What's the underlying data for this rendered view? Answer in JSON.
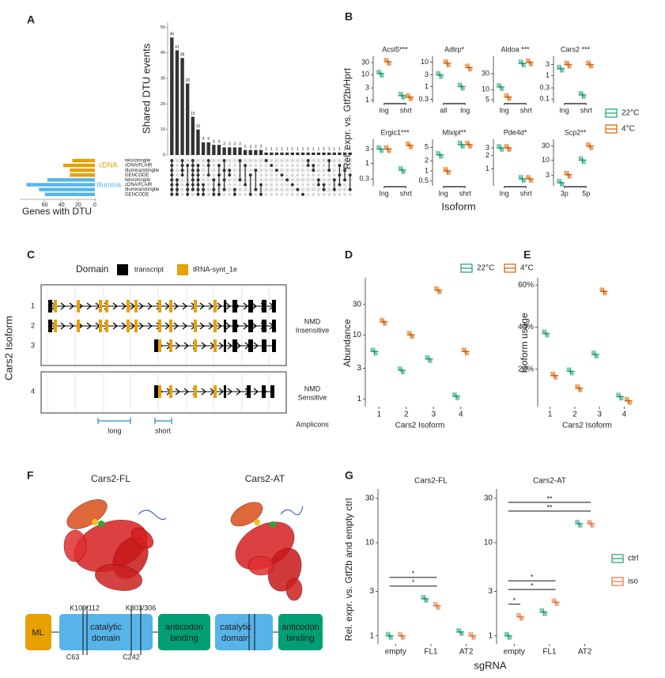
{
  "panel_labels": [
    "A",
    "B",
    "C",
    "D",
    "E",
    "F",
    "G"
  ],
  "chart_data": [
    {
      "type": "upset",
      "ylabel": "Shared DTU events",
      "values": [
        46,
        41,
        38,
        28,
        15,
        10,
        5,
        5,
        4,
        4,
        3,
        3,
        3,
        3,
        2,
        2,
        2,
        2,
        1,
        1,
        1,
        1,
        1,
        1,
        1,
        1,
        1,
        1,
        1,
        1,
        1,
        1,
        1,
        1,
        1
      ],
      "ylim": [
        0,
        52
      ],
      "yticks": [
        0,
        10,
        20,
        30,
        40,
        50
      ],
      "color": "#333333",
      "sets": [
        "telo/stringtie",
        "cDNA/FLAIR",
        "Illumina/stringtie",
        "GENCODE",
        "telo/stringtie",
        "cDNA/FLAIR",
        "Illumina/stringtie",
        "GENCODE"
      ],
      "set_sizes": [
        27,
        38,
        30,
        30,
        57,
        82,
        67,
        60
      ],
      "set_groups": [
        {
          "name": "cDNA",
          "color": "#e69f00"
        },
        {
          "name": "Illumina",
          "color": "#56b4e9"
        }
      ],
      "set_xlim": [
        90,
        0
      ],
      "set_xticks": [
        60,
        40,
        20,
        0
      ],
      "xlabel": "Genes with DTU",
      "membership": [
        [
          0,
          1,
          2,
          3,
          4,
          5,
          6,
          7
        ],
        [
          4,
          5,
          6,
          7
        ],
        [
          0,
          1,
          2,
          3
        ],
        [
          1,
          5,
          6,
          7
        ],
        [
          0,
          1,
          2,
          3,
          4,
          5,
          6
        ],
        [
          1,
          2,
          3,
          4,
          5,
          6,
          7
        ],
        [
          5,
          6,
          7
        ],
        [
          0,
          1,
          3
        ],
        [
          4,
          6,
          7
        ],
        [
          1,
          3,
          5,
          7
        ],
        [
          0,
          2,
          4,
          6
        ],
        [
          2,
          3
        ],
        [
          6,
          7
        ],
        [
          0,
          4
        ],
        [
          1,
          5
        ],
        [
          3,
          7
        ],
        [
          2,
          6
        ],
        [
          5,
          7
        ],
        [
          0
        ],
        [
          1
        ],
        [
          2
        ],
        [
          3
        ],
        [
          4
        ],
        [
          5
        ],
        [
          6
        ],
        [
          7
        ],
        [
          0,
          1
        ],
        [
          1,
          2
        ],
        [
          4,
          5
        ],
        [
          5,
          6
        ],
        [
          0,
          2
        ],
        [
          4,
          6
        ],
        [
          1,
          3,
          5
        ],
        [
          2,
          4
        ],
        [
          3,
          6
        ]
      ]
    },
    {
      "type": "dotplot",
      "ylabel": "Rel. expr. vs. Gtf2b/Hprt",
      "xlabel": "Isoform",
      "log": true,
      "series": [
        {
          "name": "22°C",
          "color": "#1b9e77"
        },
        {
          "name": "4°C",
          "color": "#d95f02"
        }
      ],
      "facets": [
        {
          "title": "Acsl5***",
          "categories": [
            "lng",
            "shrt"
          ],
          "values": [
            [
              11,
              1.5
            ],
            [
              32,
              1.3
            ]
          ],
          "ylim": [
            0.9,
            40
          ],
          "yticks": [
            1,
            3,
            10,
            30
          ]
        },
        {
          "title": "Adtrp*",
          "categories": [
            "all",
            "lng"
          ],
          "values": [
            [
              3,
              1
            ],
            [
              9,
              6
            ]
          ],
          "ylim": [
            0.25,
            13
          ],
          "yticks": [
            0.3,
            1,
            3,
            10
          ]
        },
        {
          "title": "Aldoa ***",
          "categories": [
            "lng",
            "shrt"
          ],
          "values": [
            [
              12,
              60
            ],
            [
              6,
              65
            ]
          ],
          "ylim": [
            4.5,
            80
          ],
          "yticks": [
            5,
            10,
            30
          ]
        },
        {
          "title": "Cars2 ***",
          "categories": [
            "lng",
            "shrt"
          ],
          "values": [
            [
              2,
              0.15
            ],
            [
              3,
              3
            ]
          ],
          "ylim": [
            0.08,
            5
          ],
          "yticks": [
            0.1,
            0.3,
            1,
            3
          ]
        },
        {
          "title": "Ergic1***",
          "categories": [
            "lng",
            "shrt"
          ],
          "values": [
            [
              3,
              0.6
            ],
            [
              3,
              4
            ]
          ],
          "ylim": [
            0.2,
            5
          ],
          "yticks": [
            0.3,
            1,
            3
          ]
        },
        {
          "title": "Mlxipl**",
          "categories": [
            "lng",
            "shrt"
          ],
          "values": [
            [
              3,
              6
            ],
            [
              1,
              6
            ]
          ],
          "ylim": [
            0.4,
            7
          ],
          "yticks": [
            0.5,
            1,
            2,
            5
          ]
        },
        {
          "title": "Pde4d*",
          "categories": [
            "lng",
            "shrt"
          ],
          "values": [
            [
              3,
              0.6
            ],
            [
              3,
              0.6
            ]
          ],
          "ylim": [
            0.45,
            4
          ],
          "yticks": [
            1,
            2,
            3
          ]
        },
        {
          "title": "Scp2**",
          "categories": [
            "3p",
            "5p"
          ],
          "values": [
            [
              1.7,
              10
            ],
            [
              3.2,
              30
            ]
          ],
          "ylim": [
            1.5,
            40
          ],
          "yticks": [
            3,
            10,
            30
          ]
        }
      ]
    },
    {
      "type": "dotplot",
      "series": [
        {
          "name": "22°C",
          "color": "#1b9e77"
        },
        {
          "name": "4°C",
          "color": "#d95f02"
        }
      ],
      "facets": [
        {
          "ylabel": "Abundance",
          "xlabel": "Cars2 Isoform",
          "log": true,
          "categories": [
            "1",
            "2",
            "3",
            "4"
          ],
          "values": [
            [
              5.5,
              2.8,
              4.2,
              1.1
            ],
            [
              16,
              10,
              50,
              5.5
            ]
          ],
          "ylim": [
            0.8,
            70
          ],
          "yticks": [
            1,
            3,
            10,
            30
          ]
        },
        {
          "ylabel": "Isoform usage",
          "xlabel": "Cars2 Isoform",
          "log": false,
          "categories": [
            "1",
            "2",
            "3",
            "4"
          ],
          "values": [
            [
              37,
              19,
              27,
              7
            ],
            [
              17,
              11,
              57,
              5
            ]
          ],
          "ylim": [
            3,
            62
          ],
          "yticks": [
            {
              "value": 20,
              "label": "20%"
            },
            {
              "value": 40,
              "label": "40%"
            },
            {
              "value": 60,
              "label": "60%"
            }
          ]
        }
      ]
    },
    {
      "type": "dotplot",
      "ylabel": "Rel. expr. vs. Gtf2b and empty ctrl",
      "xlabel": "sgRNA",
      "log": true,
      "series": [
        {
          "name": "ctrl",
          "color": "#1b9e77"
        },
        {
          "name": "iso",
          "color": "#e0773a"
        }
      ],
      "facets": [
        {
          "title": "Cars2-FL",
          "categories": [
            "empty",
            "FL1",
            "AT2"
          ],
          "values": [
            [
              1,
              2.5,
              1.1
            ],
            [
              1,
              2.1,
              1
            ]
          ],
          "ylim": [
            0.85,
            35
          ],
          "yticks": [
            1,
            3,
            10,
            30
          ],
          "brackets": [
            {
              "label": "*",
              "from": 0,
              "to": 1
            },
            {
              "label": "*",
              "from": 0,
              "to": 1
            }
          ]
        },
        {
          "title": "Cars2-AT",
          "categories": [
            "empty",
            "FL1",
            "AT2"
          ],
          "values": [
            [
              1,
              1.8,
              16
            ],
            [
              1.6,
              2.3,
              16
            ]
          ],
          "ylim": [
            0.85,
            35
          ],
          "yticks": [
            1,
            3,
            10,
            30
          ],
          "brackets": [
            {
              "label": "*",
              "from": 0,
              "to": 0
            },
            {
              "label": "*",
              "from": 0,
              "to": 1
            },
            {
              "label": "*",
              "from": 0,
              "to": 1
            },
            {
              "label": "**",
              "from": 0,
              "to": 2
            },
            {
              "label": "**",
              "from": 0,
              "to": 2
            }
          ]
        }
      ]
    }
  ],
  "gene_model": {
    "legend_title": "Domain",
    "legend": [
      "transcript",
      "tRNA-synt_1e"
    ],
    "axis_label": "Cars2 Isoform",
    "isoforms": [
      "1",
      "2",
      "3",
      "4"
    ],
    "groups": [
      [
        "NMD",
        "Insensitive"
      ],
      [
        "NMD",
        "Sensitive"
      ]
    ],
    "amplicons": [
      "long",
      "short"
    ],
    "amplicons_label": "Amplicons"
  },
  "protein_models": {
    "titles": [
      "Cars2-FL",
      "Cars2-AT"
    ],
    "ml": "ML",
    "catalytic": [
      "catalytic",
      "domain"
    ],
    "anticodon": [
      "anticodon",
      "binding"
    ],
    "sites_top": [
      "K109/112",
      "K303/306"
    ],
    "sites_bottom": [
      "C63",
      "C242"
    ]
  }
}
